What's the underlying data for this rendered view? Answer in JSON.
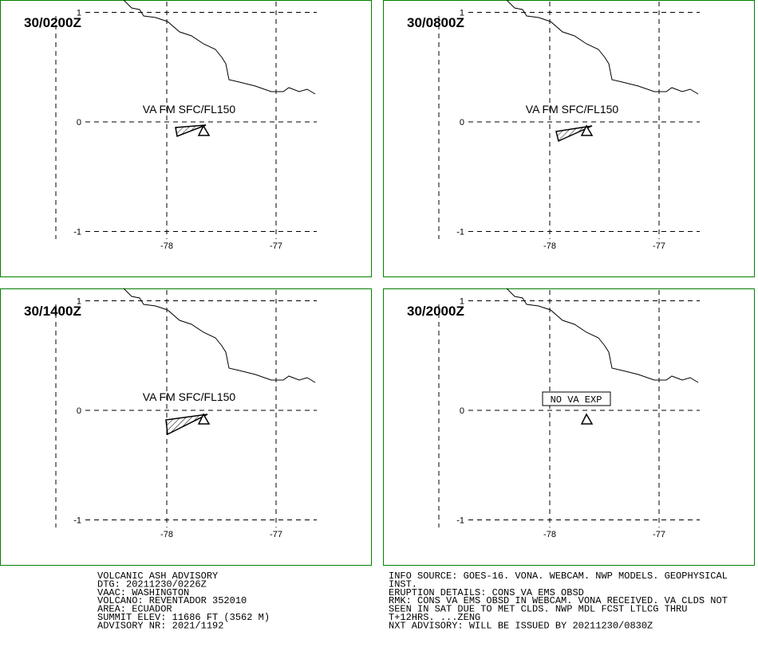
{
  "panels": [
    {
      "time": "30/0200Z",
      "label": "VA FM SFC/FL150"
    },
    {
      "time": "30/0800Z",
      "label": "VA FM SFC/FL150"
    },
    {
      "time": "30/1400Z",
      "label": "VA FM SFC/FL150"
    },
    {
      "time": "30/2000Z",
      "label": "NO VA EXP"
    }
  ],
  "grid": {
    "lat_ticks": [
      1,
      0,
      -1
    ],
    "lon_ticks": [
      -78,
      -77
    ]
  },
  "advisory_left": [
    "VOLCANIC ASH ADVISORY",
    "DTG: 20211230/0226Z",
    "VAAC: WASHINGTON",
    "VOLCANO: REVENTADOR 352010",
    "AREA: ECUADOR",
    "SUMMIT ELEV: 11686 FT (3562 M)",
    "ADVISORY NR: 2021/1192"
  ],
  "advisory_right": [
    "INFO SOURCE: GOES-16. VONA. WEBCAM. NWP MODELS. GEOPHYSICAL",
    "INST.",
    "ERUPTION DETAILS: CONS VA EMS OBSD",
    "RMK: CONS VA EMS OBSD IN WEBCAM. VONA RECEIVED. VA CLDS NOT",
    "SEEN IN SAT DUE TO MET CLDS. NWP MDL FCST LTLCG THRU",
    "T+12HRS. ...ZENG",
    "NXT ADVISORY: WILL BE ISSUED BY 20211230/0830Z"
  ]
}
